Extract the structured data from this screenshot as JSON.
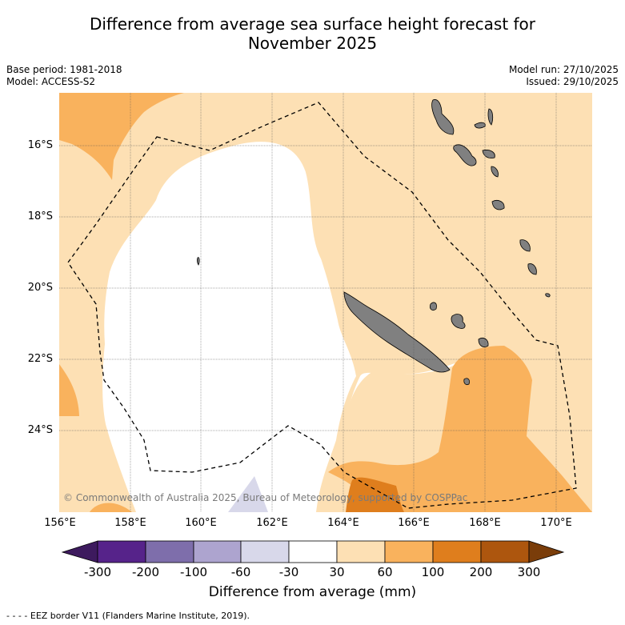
{
  "title_line1": "Difference from average sea surface height forecast for",
  "title_line2": "November 2025",
  "base_period": "Base period: 1981-2018",
  "model": "Model: ACCESS-S2",
  "model_run": "Model run: 27/10/2025",
  "issued": "Issued: 29/10/2025",
  "lat_labels": [
    "16°S",
    "18°S",
    "20°S",
    "22°S",
    "24°S"
  ],
  "lon_labels": [
    "156°E",
    "158°E",
    "160°E",
    "162°E",
    "164°E",
    "166°E",
    "168°E",
    "170°E"
  ],
  "copyright": "© Commonwealth of Australia 2025, Bureau of Meteorology, supported by COSPPac",
  "colorbar": {
    "ticks": [
      "-300",
      "-200",
      "-100",
      "-60",
      "-30",
      "30",
      "60",
      "100",
      "200",
      "300"
    ],
    "colors": [
      "#3d1a5e",
      "#56238a",
      "#7e6eab",
      "#ada4cf",
      "#d8d8ea",
      "#ffffff",
      "#fde0b4",
      "#f9b25d",
      "#df7e1d",
      "#ad560e",
      "#7a3d0a"
    ],
    "label": "Difference from average (mm)"
  },
  "footer": "- -  - - EEZ border V11 (Flanders Marine Institute, 2019).",
  "map_colors": {
    "light_orange": "#fde0b4",
    "orange": "#f9b25d",
    "dark_orange": "#df7e1d",
    "light_purple": "#d8d8ea",
    "land": "#808080"
  }
}
